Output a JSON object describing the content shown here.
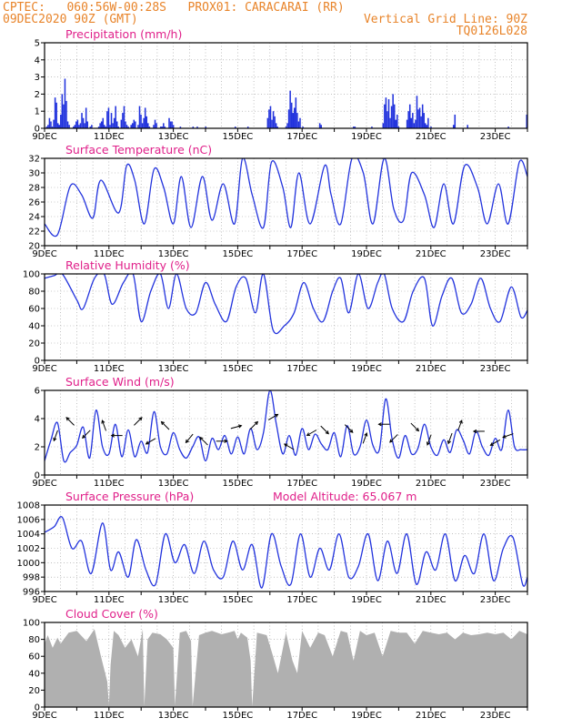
{
  "header": {
    "line1": "CPTEC:   060:56W-00:28S   PROX01: CARACARAI (RR)",
    "line2_left": "09DEC2020 90Z (GMT)",
    "line2_right": "Vertical Grid Line: 90Z",
    "line3_right": "TQ0126L028"
  },
  "colors": {
    "header": "#e8842a",
    "title": "#e0208a",
    "line": "#2233dd",
    "cloud": "#b0b0b0",
    "arrow": "#000000"
  },
  "x_labels": [
    "9DEC",
    "11DEC",
    "13DEC",
    "15DEC",
    "17DEC",
    "19DEC",
    "21DEC",
    "23DEC"
  ],
  "chart_data": [
    {
      "type": "bar",
      "title": "Precipitation (mm/h)",
      "ylim": [
        0,
        5
      ],
      "yticks": [
        0,
        1,
        2,
        3,
        4,
        5
      ],
      "values": [
        0.0,
        0.1,
        0.2,
        0.6,
        0.4,
        0.1,
        0.5,
        1.8,
        1.5,
        0.3,
        0.2,
        0.8,
        2.0,
        1.4,
        2.9,
        1.6,
        0.4,
        0.2,
        0.0,
        0.0,
        0.1,
        0.2,
        0.4,
        0.5,
        0.2,
        0.3,
        0.9,
        0.6,
        0.3,
        1.2,
        0.4,
        0.0,
        0.1,
        0.2,
        0.0,
        0.0,
        0.0,
        0.0,
        0.1,
        0.3,
        0.4,
        0.6,
        0.2,
        0.1,
        1.0,
        1.2,
        0.2,
        0.9,
        0.3,
        0.6,
        1.3,
        0.4,
        0.1,
        0.0,
        0.5,
        0.9,
        1.3,
        0.4,
        0.2,
        0.1,
        0.0,
        0.2,
        0.3,
        0.5,
        0.4,
        0.0,
        0.2,
        1.3,
        0.8,
        0.3,
        0.6,
        1.2,
        0.7,
        0.3,
        0.1,
        0.0,
        0.0,
        0.2,
        0.5,
        0.3,
        0.0,
        0.0,
        0.1,
        0.1,
        0.3,
        0.1,
        0.0,
        0.0,
        0.6,
        0.4,
        0.4,
        0.2,
        0.0,
        0.0,
        0.0,
        0.0,
        0.1,
        0.0,
        0.0,
        0.0,
        0.0,
        0.0,
        0.0,
        0.0,
        0.0,
        0.1,
        0.0,
        0.0,
        0.1,
        0.0,
        0.0,
        0.0,
        0.0,
        0.0,
        0.1,
        0.0,
        0.0,
        0.0,
        0.0,
        0.0,
        0.0,
        0.0,
        0.0,
        0.0,
        0.0,
        0.0,
        0.0,
        0.0,
        0.0,
        0.0,
        0.0,
        0.0,
        0.0,
        0.0,
        0.0,
        0.1,
        0.0,
        0.0,
        0.0,
        0.0,
        0.0,
        0.0,
        0.0,
        0.0,
        0.1,
        0.0,
        0.0,
        0.0,
        0.0,
        0.0,
        0.0,
        0.0,
        0.0,
        0.0,
        0.0,
        0.0,
        0.0,
        0.0,
        0.6,
        1.1,
        1.3,
        0.5,
        1.0,
        0.7,
        0.3,
        0.1,
        0.0,
        0.0,
        0.0,
        0.0,
        0.0,
        0.1,
        0.3,
        1.1,
        2.2,
        1.5,
        0.9,
        1.2,
        1.8,
        0.9,
        0.4,
        0.6,
        0.0,
        0.1,
        0.0,
        0.0,
        0.0,
        0.0,
        0.0,
        0.0,
        0.0,
        0.0,
        0.0,
        0.0,
        0.0,
        0.3,
        0.2,
        0.0,
        0.0,
        0.0,
        0.0,
        0.0,
        0.0,
        0.0,
        0.0,
        0.0,
        0.0,
        0.0,
        0.0,
        0.0,
        0.0,
        0.0,
        0.0,
        0.0,
        0.0,
        0.0,
        0.0,
        0.0,
        0.0,
        0.1,
        0.1,
        0.0,
        0.0,
        0.0,
        0.0,
        0.0,
        0.0,
        0.0,
        0.0,
        0.0,
        0.0,
        0.0,
        0.1,
        0.0,
        0.0,
        0.0,
        0.0,
        0.0,
        0.0,
        0.0,
        0.3,
        1.4,
        1.8,
        1.0,
        1.7,
        0.6,
        1.3,
        2.0,
        1.4,
        0.5,
        0.8,
        0.1,
        0.0,
        0.0,
        0.0,
        0.0,
        0.0,
        0.5,
        1.0,
        1.4,
        0.6,
        0.9,
        0.3,
        0.5,
        1.9,
        1.1,
        1.2,
        0.7,
        1.4,
        0.9,
        0.3,
        0.2,
        0.6,
        0.0,
        0.1,
        0.0,
        0.0,
        0.0,
        0.0,
        0.0,
        0.0,
        0.0,
        0.0,
        0.0,
        0.0,
        0.0,
        0.0,
        0.0,
        0.0,
        0.0,
        0.2,
        0.8,
        0.0,
        0.0,
        0.0,
        0.0,
        0.0,
        0.0,
        0.0,
        0.0,
        0.2,
        0.0,
        0.0,
        0.0,
        0.0,
        0.0,
        0.0,
        0.0,
        0.0,
        0.0,
        0.0,
        0.0,
        0.0,
        0.0,
        0.0,
        0.0,
        0.0,
        0.0,
        0.0,
        0.0,
        0.0,
        0.0,
        0.0,
        0.0,
        0.0,
        0.0,
        0.0,
        0.0,
        0.0,
        0.1,
        0.0,
        0.0,
        0.0,
        0.0,
        0.0,
        0.0,
        0.0,
        0.0,
        0.0,
        0.0,
        0.0,
        0.0,
        0.8
      ]
    },
    {
      "type": "line",
      "title": "Surface Temperature (nC)",
      "ylim": [
        20,
        32
      ],
      "yticks": [
        20,
        22,
        24,
        26,
        28,
        30,
        32
      ],
      "x": [
        0,
        0.4,
        0.8,
        1.15,
        1.5,
        1.75,
        2.3,
        2.55,
        2.8,
        3.1,
        3.4,
        3.7,
        4.0,
        4.25,
        4.55,
        4.9,
        5.2,
        5.55,
        5.9,
        6.15,
        6.45,
        6.8,
        7.05,
        7.4,
        7.65,
        7.9,
        8.25,
        8.7,
        8.9,
        9.2,
        9.55,
        9.9,
        10.2,
        10.55,
        10.85,
        11.15,
        11.4,
        11.8,
        12.1,
        12.4,
        12.7,
        13.05,
        13.45,
        13.75,
        14.1,
        14.4,
        14.75,
        15.0
      ],
      "values": [
        23.0,
        21.5,
        28.2,
        27.0,
        23.8,
        29.0,
        24.5,
        31.0,
        29.0,
        23.0,
        30.5,
        28.0,
        23.0,
        29.5,
        22.5,
        29.5,
        23.5,
        28.5,
        23.0,
        32.0,
        27.0,
        22.5,
        31.5,
        28.0,
        22.5,
        30.0,
        23.0,
        31.0,
        27.0,
        23.0,
        32.0,
        30.0,
        23.0,
        32.0,
        25.0,
        23.5,
        30.0,
        27.0,
        22.5,
        28.5,
        23.0,
        31.0,
        28.0,
        23.0,
        28.5,
        23.0,
        31.5,
        29.5
      ]
    },
    {
      "type": "line",
      "title": "Relative Humidity (%)",
      "ylim": [
        0,
        100
      ],
      "yticks": [
        0,
        20,
        40,
        60,
        80,
        100
      ],
      "x": [
        0,
        0.3,
        0.55,
        1.0,
        1.2,
        1.55,
        1.85,
        2.1,
        2.45,
        2.75,
        3.0,
        3.3,
        3.6,
        3.85,
        4.1,
        4.4,
        4.7,
        5.0,
        5.3,
        5.65,
        5.95,
        6.25,
        6.55,
        6.8,
        7.1,
        7.45,
        7.75,
        8.05,
        8.35,
        8.65,
        8.95,
        9.2,
        9.45,
        9.75,
        10.05,
        10.35,
        10.55,
        10.8,
        11.15,
        11.45,
        11.8,
        12.05,
        12.35,
        12.65,
        12.95,
        13.25,
        13.55,
        13.85,
        14.15,
        14.5,
        14.8,
        15.0
      ],
      "values": [
        95,
        98,
        100,
        70,
        60,
        95,
        100,
        65,
        90,
        100,
        45,
        80,
        100,
        60,
        100,
        60,
        55,
        90,
        65,
        45,
        85,
        95,
        55,
        100,
        35,
        40,
        55,
        90,
        60,
        45,
        80,
        95,
        55,
        100,
        60,
        90,
        100,
        60,
        45,
        80,
        95,
        40,
        75,
        95,
        55,
        65,
        95,
        60,
        45,
        85,
        50,
        58
      ]
    },
    {
      "type": "line",
      "title": "Surface Wind (m/s)",
      "ylim": [
        0,
        6
      ],
      "yticks": [
        0,
        2,
        4,
        6
      ],
      "x": [
        0,
        0.2,
        0.4,
        0.6,
        0.8,
        1.0,
        1.2,
        1.4,
        1.6,
        1.8,
        2.0,
        2.2,
        2.4,
        2.6,
        2.8,
        3.0,
        3.2,
        3.4,
        3.6,
        3.8,
        4.0,
        4.2,
        4.4,
        4.6,
        4.8,
        5.0,
        5.2,
        5.4,
        5.6,
        5.8,
        6.0,
        6.2,
        6.4,
        6.6,
        6.8,
        7.0,
        7.2,
        7.4,
        7.6,
        7.8,
        8.0,
        8.2,
        8.4,
        8.6,
        8.8,
        9.0,
        9.2,
        9.4,
        9.6,
        9.8,
        10.0,
        10.2,
        10.4,
        10.6,
        10.8,
        11.0,
        11.2,
        11.4,
        11.6,
        11.8,
        12.0,
        12.2,
        12.4,
        12.6,
        12.8,
        13.0,
        13.2,
        13.4,
        13.6,
        13.8,
        14.0,
        14.2,
        14.4,
        14.6,
        14.8,
        15.0
      ],
      "values": [
        1.0,
        2.5,
        3.7,
        1.0,
        1.6,
        2.1,
        3.4,
        1.2,
        4.6,
        2.0,
        1.5,
        3.6,
        1.3,
        3.2,
        1.3,
        2.4,
        1.6,
        4.5,
        2.0,
        1.5,
        3.0,
        1.8,
        1.2,
        2.0,
        2.7,
        1.0,
        2.6,
        1.8,
        2.8,
        1.5,
        2.7,
        1.5,
        3.3,
        1.8,
        3.0,
        6.0,
        3.6,
        1.5,
        2.8,
        1.4,
        3.3,
        1.8,
        2.9,
        2.2,
        1.8,
        3.0,
        1.3,
        3.5,
        1.5,
        2.0,
        3.9,
        2.1,
        1.8,
        5.4,
        2.5,
        1.2,
        2.8,
        1.5,
        1.9,
        3.6,
        2.0,
        1.4,
        2.5,
        1.6,
        3.2,
        2.5,
        1.5,
        3.1,
        2.0,
        1.4,
        2.6,
        1.8,
        4.6,
        2.0,
        1.8,
        1.8
      ],
      "arrows": [
        {
          "x": 0.35,
          "y": 2.8,
          "dir": 200
        },
        {
          "x": 0.8,
          "y": 3.8,
          "dir": 315
        },
        {
          "x": 1.3,
          "y": 2.9,
          "dir": 225
        },
        {
          "x": 1.85,
          "y": 3.5,
          "dir": 340
        },
        {
          "x": 2.25,
          "y": 2.8,
          "dir": 270
        },
        {
          "x": 2.9,
          "y": 3.8,
          "dir": 45
        },
        {
          "x": 3.3,
          "y": 2.4,
          "dir": 240
        },
        {
          "x": 3.75,
          "y": 3.5,
          "dir": 315
        },
        {
          "x": 4.5,
          "y": 2.6,
          "dir": 220
        },
        {
          "x": 4.95,
          "y": 2.4,
          "dir": 315
        },
        {
          "x": 5.5,
          "y": 2.4,
          "dir": 90
        },
        {
          "x": 5.95,
          "y": 3.4,
          "dir": 75
        },
        {
          "x": 6.5,
          "y": 3.5,
          "dir": 45
        },
        {
          "x": 7.1,
          "y": 4.1,
          "dir": 60
        },
        {
          "x": 7.6,
          "y": 2.0,
          "dir": 300
        },
        {
          "x": 8.3,
          "y": 3.0,
          "dir": 240
        },
        {
          "x": 8.7,
          "y": 3.2,
          "dir": 135
        },
        {
          "x": 9.45,
          "y": 3.3,
          "dir": 135
        },
        {
          "x": 9.95,
          "y": 2.6,
          "dir": 20
        },
        {
          "x": 10.55,
          "y": 3.6,
          "dir": 270
        },
        {
          "x": 10.85,
          "y": 2.6,
          "dir": 225
        },
        {
          "x": 11.5,
          "y": 3.4,
          "dir": 135
        },
        {
          "x": 11.95,
          "y": 2.5,
          "dir": 200
        },
        {
          "x": 12.6,
          "y": 2.6,
          "dir": 200
        },
        {
          "x": 12.9,
          "y": 3.5,
          "dir": 20
        },
        {
          "x": 13.5,
          "y": 3.1,
          "dir": 270
        },
        {
          "x": 14.0,
          "y": 2.3,
          "dir": 240
        },
        {
          "x": 14.4,
          "y": 2.8,
          "dir": 250
        }
      ]
    },
    {
      "type": "line",
      "title": "Surface Pressure (hPa)",
      "annotation": "Model Altitude: 65.067 m",
      "ylim": [
        996,
        1008
      ],
      "yticks": [
        996,
        998,
        1000,
        1002,
        1004,
        1006,
        1008
      ],
      "x": [
        0,
        0.3,
        0.55,
        0.85,
        1.15,
        1.45,
        1.8,
        2.05,
        2.3,
        2.6,
        2.85,
        3.15,
        3.45,
        3.75,
        4.05,
        4.35,
        4.65,
        4.95,
        5.25,
        5.55,
        5.85,
        6.15,
        6.45,
        6.75,
        7.05,
        7.35,
        7.65,
        7.95,
        8.25,
        8.55,
        8.85,
        9.15,
        9.45,
        9.75,
        10.05,
        10.35,
        10.65,
        10.95,
        11.25,
        11.55,
        11.85,
        12.15,
        12.45,
        12.75,
        13.05,
        13.35,
        13.65,
        13.95,
        14.25,
        14.55,
        14.85,
        15.0
      ],
      "values": [
        1004.2,
        1005.0,
        1006.3,
        1002.0,
        1003.0,
        998.5,
        1005.5,
        999.0,
        1001.5,
        998.0,
        1003.2,
        999.0,
        997.0,
        1004.0,
        1000.0,
        1002.5,
        998.5,
        1003.0,
        999.0,
        998.0,
        1003.0,
        999.0,
        1002.5,
        996.5,
        1004.0,
        999.5,
        997.0,
        1004.0,
        998.0,
        1002.0,
        999.0,
        1004.0,
        998.0,
        999.5,
        1004.0,
        997.5,
        1003.0,
        998.5,
        1004.0,
        997.0,
        1001.5,
        999.0,
        1004.0,
        997.5,
        1001.0,
        998.5,
        1004.0,
        997.5,
        1002.0,
        1003.5,
        997.0,
        998.0
      ]
    },
    {
      "type": "area",
      "title": "Cloud Cover (%)",
      "ylim": [
        0,
        100
      ],
      "yticks": [
        0,
        20,
        40,
        60,
        80,
        100
      ],
      "x": [
        0,
        0.1,
        0.25,
        0.4,
        0.5,
        0.75,
        1.0,
        1.3,
        1.55,
        1.75,
        1.95,
        2.0,
        2.05,
        2.15,
        2.3,
        2.5,
        2.7,
        2.9,
        3.05,
        3.1,
        3.2,
        3.35,
        3.6,
        3.8,
        4.0,
        4.05,
        4.2,
        4.4,
        4.55,
        4.6,
        4.8,
        5.0,
        5.2,
        5.5,
        5.7,
        5.9,
        6.0,
        6.1,
        6.3,
        6.4,
        6.45,
        6.6,
        6.9,
        7.1,
        7.25,
        7.5,
        7.7,
        7.85,
        8.0,
        8.25,
        8.5,
        8.7,
        8.95,
        9.2,
        9.4,
        9.6,
        9.8,
        10.0,
        10.25,
        10.5,
        10.75,
        11.0,
        11.25,
        11.5,
        11.75,
        12.0,
        12.25,
        12.5,
        12.75,
        13.0,
        13.25,
        13.5,
        13.75,
        14.0,
        14.25,
        14.5,
        14.75,
        15.0
      ],
      "values": [
        75,
        85,
        70,
        82,
        75,
        88,
        90,
        78,
        92,
        60,
        30,
        2,
        50,
        90,
        85,
        70,
        80,
        60,
        92,
        1,
        80,
        88,
        86,
        80,
        70,
        2,
        88,
        90,
        78,
        1,
        85,
        88,
        90,
        86,
        88,
        90,
        80,
        88,
        82,
        55,
        1,
        88,
        85,
        60,
        40,
        88,
        55,
        40,
        90,
        70,
        88,
        85,
        60,
        90,
        88,
        55,
        90,
        85,
        88,
        60,
        90,
        88,
        88,
        75,
        90,
        88,
        86,
        88,
        80,
        88,
        85,
        86,
        88,
        86,
        88,
        80,
        90,
        86
      ]
    }
  ]
}
